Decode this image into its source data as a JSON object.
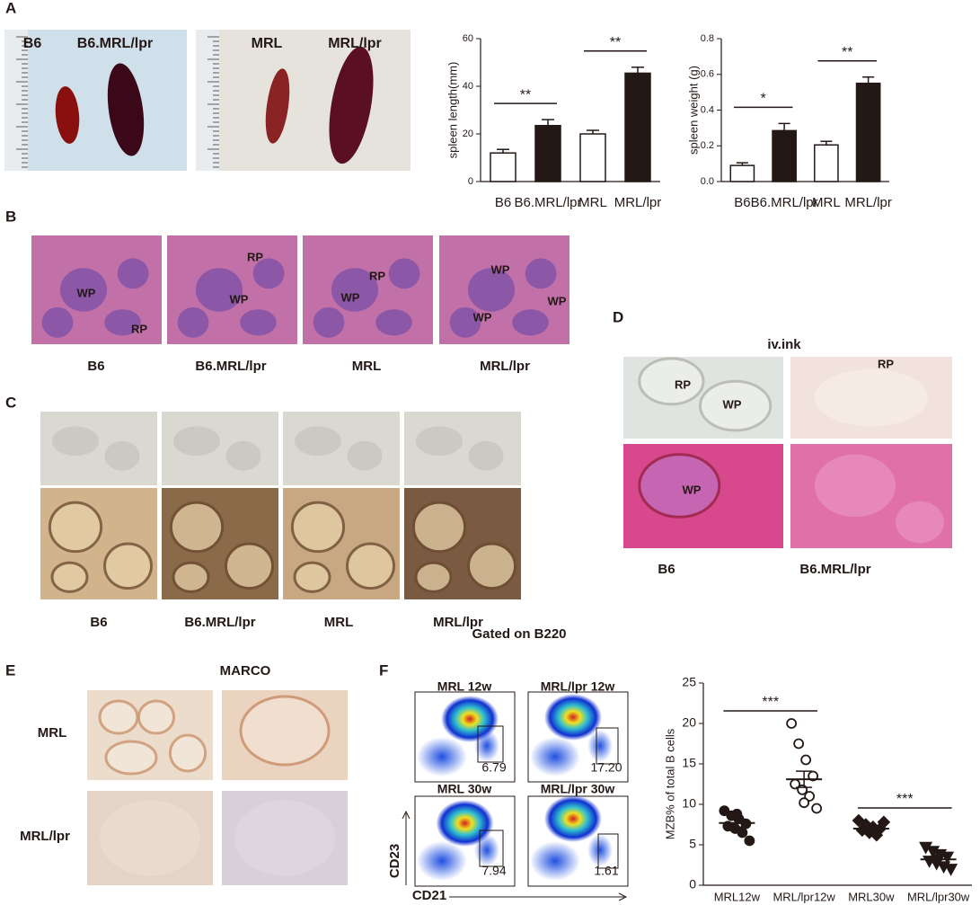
{
  "panel_labels": [
    "A",
    "B",
    "C",
    "D",
    "E",
    "F"
  ],
  "panel_a": {
    "photo_labels": [
      "B6",
      "B6.MRL/lpr",
      "MRL",
      "MRL/lpr"
    ]
  },
  "panel_b": {
    "image_labels": [
      "WP",
      "RP",
      "RP",
      "WP",
      "RP",
      "WP",
      "WP",
      "WP",
      "WP"
    ],
    "captions": [
      "B6",
      "B6.MRL/lpr",
      "MRL",
      "MRL/lpr"
    ]
  },
  "panel_c": {
    "captions": [
      "B6",
      "B6.MRL/lpr",
      "MRL",
      "MRL/lpr"
    ]
  },
  "panel_d": {
    "title": "iv.ink",
    "image_labels": [
      "RP",
      "WP",
      "RP",
      "WP"
    ],
    "captions": [
      "B6",
      "B6.MRL/lpr"
    ]
  },
  "panel_e": {
    "title": "MARCO",
    "row_labels": [
      "MRL",
      "MRL/lpr"
    ]
  },
  "panel_f": {
    "title": "Gated on B220",
    "plot_titles": [
      "MRL  12w",
      "MRL/lpr 12w",
      "MRL 30w",
      "MRL/lpr 30w"
    ],
    "gate_values": [
      "6.79",
      "17.20",
      "7.94",
      "1.61"
    ],
    "y_axis": "CD23",
    "x_axis": "CD21"
  },
  "chart_data": [
    {
      "type": "bar",
      "y_label": "spleen length(mm)",
      "categories": [
        "B6",
        "B6.MRL/lpr",
        "MRL",
        "MRL/lpr"
      ],
      "values": [
        12,
        23.5,
        20,
        45.5
      ],
      "errors": [
        1.5,
        2.5,
        1.5,
        2.5
      ],
      "colors": [
        "#ffffff",
        "#231815",
        "#ffffff",
        "#231815"
      ],
      "ylim": [
        0,
        60
      ],
      "yticks": [
        0,
        20,
        40,
        60
      ],
      "significance": [
        "**",
        "**"
      ]
    },
    {
      "type": "bar",
      "y_label": "spleen weight (g)",
      "categories": [
        "B6",
        "B6.MRL/lpr",
        "MRL",
        "MRL/lpr"
      ],
      "values": [
        0.09,
        0.285,
        0.205,
        0.55
      ],
      "errors": [
        0.015,
        0.04,
        0.02,
        0.035
      ],
      "colors": [
        "#ffffff",
        "#231815",
        "#ffffff",
        "#231815"
      ],
      "ylim": [
        0,
        0.8
      ],
      "yticks": [
        {
          "value": 0,
          "label": "0.0"
        },
        0.2,
        0.4,
        0.6,
        0.8
      ],
      "significance": [
        "*",
        "**"
      ]
    },
    {
      "type": "scatter",
      "y_label": "MZB% of total B cells",
      "categories": [
        "MRL12w",
        "MRL/lpr12w",
        "MRL30w",
        "MRL/lpr30w"
      ],
      "ylim": [
        0,
        25
      ],
      "yticks": [
        0,
        5,
        10,
        15,
        20,
        25
      ],
      "significance": [
        "***",
        "***"
      ],
      "series": [
        {
          "marker": "circle",
          "color": "#231815",
          "values": [
            9.2,
            8.6,
            8.2,
            7.6,
            7.3,
            7.0,
            6.5,
            5.5,
            8.8
          ],
          "mean": 7.7,
          "sem": 0.5
        },
        {
          "marker": "open-circle",
          "color": "#231815",
          "values": [
            20,
            17.5,
            15.5,
            13.5,
            12.5,
            11.8,
            11.0,
            9.5,
            10.2
          ],
          "mean": 13.1,
          "sem": 1.0
        },
        {
          "marker": "diamond",
          "color": "#231815",
          "values": [
            8.0,
            7.5,
            7.2,
            7.0,
            6.8,
            6.5,
            6.2,
            7.8,
            6.9
          ],
          "mean": 7.0,
          "sem": 0.3
        },
        {
          "marker": "triangle-down",
          "color": "#231815",
          "values": [
            4.7,
            4.2,
            3.8,
            3.5,
            3.0,
            2.7,
            2.3,
            2.0,
            3.2
          ],
          "mean": 3.2,
          "sem": 0.4
        }
      ]
    }
  ]
}
